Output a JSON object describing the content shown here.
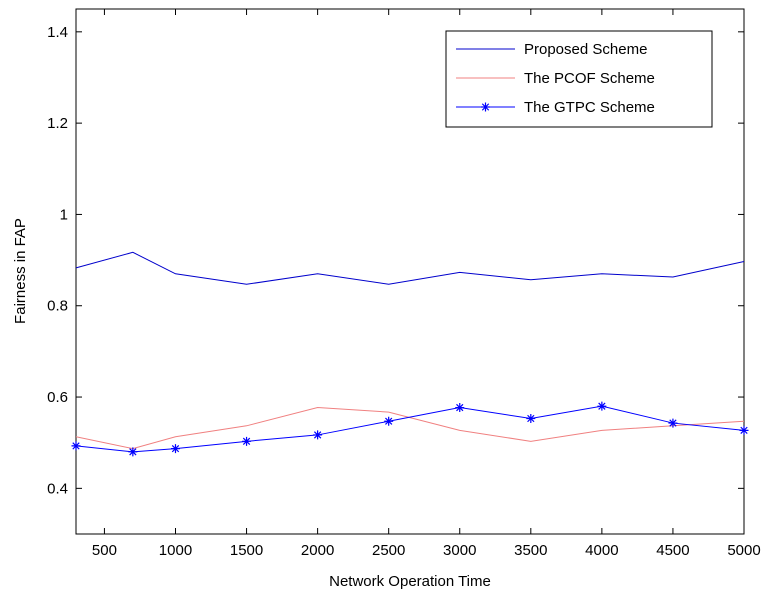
{
  "chart_data": {
    "type": "line",
    "title": "",
    "xlabel": "Network Operation Time",
    "ylabel": "Fairness in FAP",
    "xlim": [
      300,
      5000
    ],
    "ylim": [
      0.3,
      1.45
    ],
    "x_ticks": [
      500,
      1000,
      1500,
      2000,
      2500,
      3000,
      3500,
      4000,
      4500,
      5000
    ],
    "y_ticks": [
      0.4,
      0.6,
      0.8,
      1,
      1.2,
      1.4
    ],
    "x_tick_labels": [
      "500",
      "1000",
      "1500",
      "2000",
      "2500",
      "3000",
      "3500",
      "4000",
      "4500",
      "5000"
    ],
    "y_tick_labels": [
      "0.4",
      "0.6",
      "0.8",
      "1",
      "1.2",
      "1.4"
    ],
    "grid": false,
    "legend_position": "top-right",
    "x": [
      300,
      700,
      1000,
      1500,
      2000,
      2500,
      3000,
      3500,
      4000,
      4500,
      5000
    ],
    "series": [
      {
        "name": "Proposed Scheme",
        "color": "#0000cc",
        "marker": "none",
        "values": [
          0.883,
          0.917,
          0.87,
          0.847,
          0.87,
          0.847,
          0.873,
          0.857,
          0.87,
          0.863,
          0.897
        ]
      },
      {
        "name": "The PCOF Scheme",
        "color": "#f08080",
        "marker": "none",
        "values": [
          0.513,
          0.487,
          0.513,
          0.537,
          0.577,
          0.567,
          0.527,
          0.503,
          0.527,
          0.537,
          0.547
        ]
      },
      {
        "name": "The GTPC Scheme",
        "color": "#0000ff",
        "marker": "star",
        "values": [
          0.493,
          0.48,
          0.487,
          0.503,
          0.517,
          0.547,
          0.577,
          0.553,
          0.58,
          0.543,
          0.527
        ]
      }
    ]
  }
}
